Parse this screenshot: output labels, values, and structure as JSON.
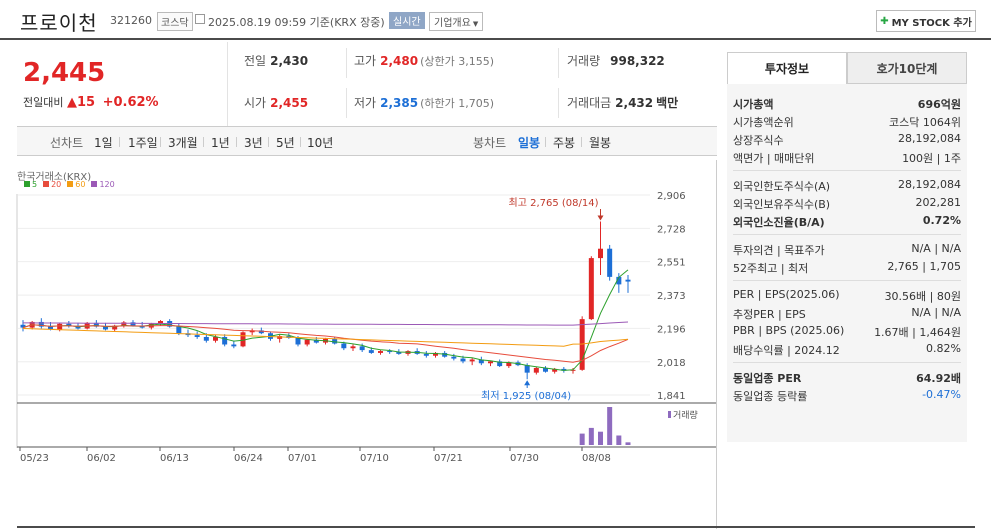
{
  "header": {
    "name": "프로이천",
    "code": "321260",
    "market_badge": "코스닥",
    "datetime": "2025.08.19 09:59 기준(KRX 장중)",
    "realtime_label": "실시간",
    "corp_label": "기업개요",
    "mystock_label": "MY STOCK 추가"
  },
  "price": {
    "current": "2,445",
    "change_label": "전일대비",
    "change_amount": "15",
    "change_pct": "+0.62%"
  },
  "summary": {
    "prev_label": "전일",
    "prev": "2,430",
    "high_label": "고가",
    "high": "2,480",
    "upper_limit": "(상한가 3,155)",
    "volume_label": "거래량",
    "volume": "998,322",
    "open_label": "시가",
    "open": "2,455",
    "low_label": "저가",
    "low": "2,385",
    "lower_limit": "(하한가 1,705)",
    "amount_label": "거래대금",
    "amount": "2,432",
    "amount_unit": "백만"
  },
  "tabs": {
    "line_label": "선차트",
    "periods": [
      "1일",
      "1주일",
      "3개월",
      "1년",
      "3년",
      "5년",
      "10년"
    ],
    "candle_label": "봉차트",
    "candle_periods": [
      "일봉",
      "주봉",
      "월봉"
    ],
    "active_candle": "일봉"
  },
  "chart_data": {
    "type": "candlestick",
    "market_label": "한국거래소(KRX)",
    "ma_legend": [
      {
        "name": "5",
        "color": "#2ca02c"
      },
      {
        "name": "20",
        "color": "#e74c3c"
      },
      {
        "name": "60",
        "color": "#f39c12"
      },
      {
        "name": "120",
        "color": "#9b59b6"
      }
    ],
    "y_ticks": [
      1841,
      2018,
      2196,
      2373,
      2551,
      2728,
      2906
    ],
    "ylim": [
      1841,
      2906
    ],
    "x_ticks": [
      "05/23",
      "06/02",
      "06/13",
      "06/24",
      "07/01",
      "07/10",
      "07/21",
      "07/30",
      "08/08"
    ],
    "max_label": "최고 2,765 (08/14)",
    "min_label": "최저 1,925 (08/04)",
    "volume_label": "거래량",
    "candles": [
      [
        2215,
        2240,
        2180,
        2200
      ],
      [
        2200,
        2235,
        2190,
        2230
      ],
      [
        2230,
        2250,
        2195,
        2205
      ],
      [
        2205,
        2230,
        2185,
        2190
      ],
      [
        2190,
        2225,
        2180,
        2220
      ],
      [
        2220,
        2235,
        2200,
        2210
      ],
      [
        2210,
        2225,
        2190,
        2195
      ],
      [
        2195,
        2230,
        2190,
        2225
      ],
      [
        2225,
        2240,
        2200,
        2205
      ],
      [
        2205,
        2225,
        2185,
        2190
      ],
      [
        2190,
        2215,
        2180,
        2210
      ],
      [
        2210,
        2235,
        2200,
        2228
      ],
      [
        2228,
        2240,
        2205,
        2210
      ],
      [
        2210,
        2230,
        2195,
        2200
      ],
      [
        2200,
        2225,
        2190,
        2220
      ],
      [
        2220,
        2240,
        2210,
        2235
      ],
      [
        2235,
        2245,
        2200,
        2205
      ],
      [
        2205,
        2220,
        2160,
        2170
      ],
      [
        2170,
        2190,
        2150,
        2160
      ],
      [
        2160,
        2180,
        2140,
        2150
      ],
      [
        2150,
        2170,
        2120,
        2130
      ],
      [
        2130,
        2160,
        2120,
        2150
      ],
      [
        2150,
        2165,
        2100,
        2110
      ],
      [
        2110,
        2130,
        2090,
        2100
      ],
      [
        2100,
        2180,
        2095,
        2175
      ],
      [
        2175,
        2195,
        2160,
        2185
      ],
      [
        2185,
        2200,
        2165,
        2170
      ],
      [
        2170,
        2180,
        2130,
        2140
      ],
      [
        2140,
        2165,
        2120,
        2155
      ],
      [
        2155,
        2170,
        2140,
        2145
      ],
      [
        2145,
        2155,
        2100,
        2110
      ],
      [
        2110,
        2140,
        2100,
        2135
      ],
      [
        2135,
        2150,
        2115,
        2120
      ],
      [
        2120,
        2145,
        2110,
        2140
      ],
      [
        2140,
        2150,
        2110,
        2115
      ],
      [
        2115,
        2125,
        2080,
        2090
      ],
      [
        2090,
        2110,
        2075,
        2100
      ],
      [
        2100,
        2115,
        2070,
        2080
      ],
      [
        2080,
        2095,
        2060,
        2065
      ],
      [
        2065,
        2080,
        2055,
        2075
      ],
      [
        2075,
        2085,
        2060,
        2070
      ],
      [
        2070,
        2085,
        2055,
        2060
      ],
      [
        2060,
        2080,
        2050,
        2075
      ],
      [
        2075,
        2090,
        2055,
        2060
      ],
      [
        2060,
        2075,
        2040,
        2050
      ],
      [
        2050,
        2070,
        2040,
        2065
      ],
      [
        2065,
        2075,
        2040,
        2045
      ],
      [
        2045,
        2060,
        2025,
        2035
      ],
      [
        2035,
        2050,
        2010,
        2020
      ],
      [
        2020,
        2040,
        2000,
        2030
      ],
      [
        2030,
        2045,
        2000,
        2010
      ],
      [
        2010,
        2025,
        1995,
        2020
      ],
      [
        2020,
        2030,
        1990,
        1995
      ],
      [
        1995,
        2020,
        1985,
        2015
      ],
      [
        2015,
        2025,
        1995,
        2000
      ],
      [
        2000,
        2010,
        1925,
        1960
      ],
      [
        1960,
        1990,
        1950,
        1985
      ],
      [
        1985,
        1995,
        1960,
        1965
      ],
      [
        1965,
        1985,
        1955,
        1980
      ],
      [
        1980,
        1990,
        1960,
        1970
      ],
      [
        1970,
        1985,
        1955,
        1975
      ],
      [
        1975,
        2260,
        1970,
        2245
      ],
      [
        2245,
        2580,
        2240,
        2570
      ],
      [
        2570,
        2765,
        2480,
        2620
      ],
      [
        2620,
        2640,
        2450,
        2470
      ],
      [
        2470,
        2490,
        2385,
        2430
      ],
      [
        2455,
        2480,
        2385,
        2445
      ]
    ],
    "volumes": [
      0,
      0,
      0,
      0,
      0,
      0,
      0,
      0,
      0,
      0,
      0,
      0,
      0,
      0,
      0,
      0,
      0,
      0,
      0,
      0,
      0,
      0,
      0,
      0,
      0,
      0,
      0,
      0,
      0,
      0,
      0,
      0,
      0,
      0,
      0,
      0,
      0,
      0,
      0,
      0,
      0,
      0,
      0,
      0,
      0,
      0,
      0,
      0,
      0,
      0,
      0,
      0,
      0,
      0,
      0,
      0,
      0,
      0,
      0,
      0,
      0,
      0.3,
      0.45,
      0.35,
      1,
      0.25,
      0.07
    ]
  },
  "invest": {
    "tab_active": "투자정보",
    "tab_other": "호가10단계",
    "rows1": [
      {
        "k": "시가총액",
        "v": "696억원",
        "bold": true
      },
      {
        "k": "시가총액순위",
        "v": "코스닥 1064위"
      },
      {
        "k": "상장주식수",
        "v": "28,192,084"
      },
      {
        "k": "액면가 | 매매단위",
        "v": "100원 | 1주"
      }
    ],
    "rows2": [
      {
        "k": "외국인한도주식수(A)",
        "v": "28,192,084"
      },
      {
        "k": "외국인보유주식수(B)",
        "v": "202,281"
      },
      {
        "k": "외국인소진율(B/A)",
        "v": "0.72%",
        "bold": true
      }
    ],
    "rows3": [
      {
        "k": "투자의견 | 목표주가",
        "v": "N/A | N/A"
      },
      {
        "k": "52주최고 | 최저",
        "v": "2,765 | 1,705"
      }
    ],
    "rows4": [
      {
        "k": "PER | EPS(2025.06)",
        "v": "30.56배 | 80원"
      },
      {
        "k": "추정PER | EPS",
        "v": "N/A | N/A"
      },
      {
        "k": "PBR | BPS (2025.06)",
        "v": "1.67배 | 1,464원"
      },
      {
        "k": "배당수익률 | 2024.12",
        "v": "0.82%"
      }
    ],
    "rows5": [
      {
        "k": "동일업종 PER",
        "v": "64.92배",
        "bold": true
      },
      {
        "k": "동일업종 등락률",
        "v": "-0.47%",
        "blue": true
      }
    ]
  }
}
